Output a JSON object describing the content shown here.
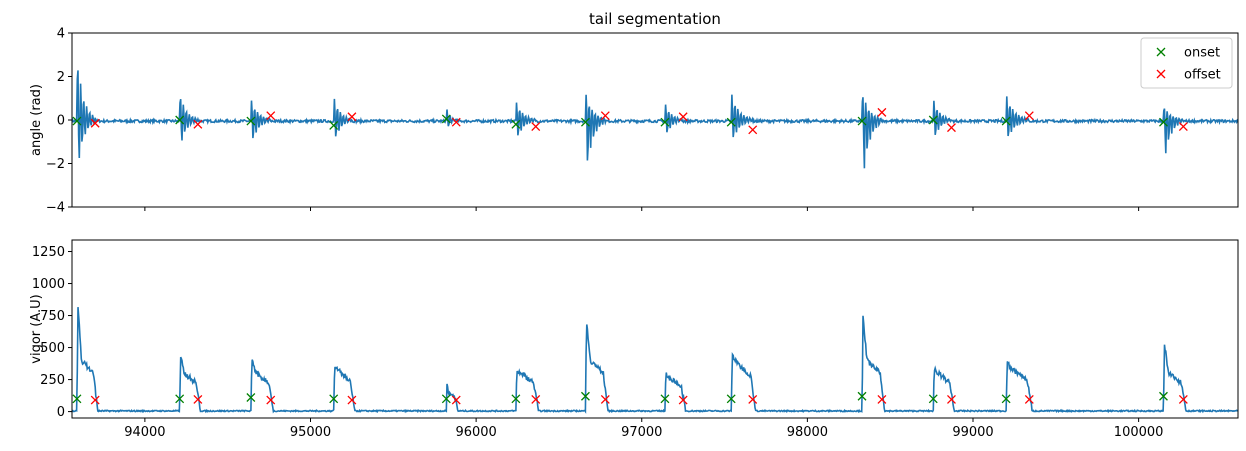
{
  "colors": {
    "trace": "#1f77b4",
    "onset": "#008000",
    "offset": "#ff0000",
    "axis": "#000000",
    "legend_border": "#cccccc"
  },
  "chart_data": [
    {
      "type": "line",
      "title": "tail segmentation",
      "xlabel": "",
      "ylabel": "angle (rad)",
      "xlim": [
        93560,
        100600
      ],
      "ylim": [
        -4,
        4
      ],
      "yticks": [
        -4,
        -2,
        0,
        2,
        4
      ],
      "ytick_labels": [
        "−4",
        "−2",
        "0",
        "2",
        "4"
      ],
      "xticks": [
        94000,
        95000,
        96000,
        97000,
        98000,
        99000,
        100000
      ],
      "xtick_labels_visible": false,
      "grid": false,
      "legend": {
        "placement": "top-right",
        "entries": [
          {
            "name": "onset",
            "marker": "x",
            "color": "#008000"
          },
          {
            "name": "offset",
            "marker": "x",
            "color": "#ff0000"
          }
        ]
      },
      "bouts": [
        {
          "onset": 93590,
          "offset": 93700,
          "peak_pos": 3.1,
          "peak_neg": -2.6
        },
        {
          "onset": 94210,
          "offset": 94320,
          "peak_pos": 1.3,
          "peak_neg": -1.4
        },
        {
          "onset": 94640,
          "offset": 94760,
          "peak_pos": 1.0,
          "peak_neg": -1.3
        },
        {
          "onset": 95140,
          "offset": 95250,
          "peak_pos": 1.1,
          "peak_neg": -1.2
        },
        {
          "onset": 95820,
          "offset": 95880,
          "peak_pos": 0.6,
          "peak_neg": -0.6
        },
        {
          "onset": 96240,
          "offset": 96360,
          "peak_pos": 0.9,
          "peak_neg": -1.1
        },
        {
          "onset": 96660,
          "offset": 96780,
          "peak_pos": 1.3,
          "peak_neg": -2.9
        },
        {
          "onset": 97140,
          "offset": 97250,
          "peak_pos": 0.8,
          "peak_neg": -0.9
        },
        {
          "onset": 97540,
          "offset": 97670,
          "peak_pos": 1.3,
          "peak_neg": -1.2
        },
        {
          "onset": 98330,
          "offset": 98450,
          "peak_pos": 1.4,
          "peak_neg": -3.2
        },
        {
          "onset": 98760,
          "offset": 98870,
          "peak_pos": 1.0,
          "peak_neg": -1.1
        },
        {
          "onset": 99200,
          "offset": 99340,
          "peak_pos": 1.2,
          "peak_neg": -1.1
        },
        {
          "onset": 100150,
          "offset": 100270,
          "peak_pos": 0.7,
          "peak_neg": -2.2
        }
      ],
      "onset_markers": [
        {
          "x": 93590,
          "y": -0.05
        },
        {
          "x": 94210,
          "y": 0.0
        },
        {
          "x": 94640,
          "y": -0.05
        },
        {
          "x": 95140,
          "y": -0.25
        },
        {
          "x": 95820,
          "y": 0.05
        },
        {
          "x": 96240,
          "y": -0.2
        },
        {
          "x": 96660,
          "y": -0.1
        },
        {
          "x": 97140,
          "y": -0.1
        },
        {
          "x": 97540,
          "y": -0.1
        },
        {
          "x": 98330,
          "y": -0.05
        },
        {
          "x": 98760,
          "y": 0.0
        },
        {
          "x": 99200,
          "y": -0.05
        },
        {
          "x": 100150,
          "y": -0.1
        }
      ],
      "offset_markers": [
        {
          "x": 93700,
          "y": -0.15
        },
        {
          "x": 94320,
          "y": -0.2
        },
        {
          "x": 94760,
          "y": 0.2
        },
        {
          "x": 95250,
          "y": 0.15
        },
        {
          "x": 95880,
          "y": -0.1
        },
        {
          "x": 96360,
          "y": -0.3
        },
        {
          "x": 96780,
          "y": 0.2
        },
        {
          "x": 97250,
          "y": 0.15
        },
        {
          "x": 97670,
          "y": -0.45
        },
        {
          "x": 98450,
          "y": 0.35
        },
        {
          "x": 98870,
          "y": -0.35
        },
        {
          "x": 99340,
          "y": 0.2
        },
        {
          "x": 100270,
          "y": -0.3
        }
      ]
    },
    {
      "type": "line",
      "title": "",
      "xlabel": "",
      "ylabel": "vigor (A.U)",
      "xlim": [
        93560,
        100600
      ],
      "ylim": [
        -50,
        1340
      ],
      "yticks": [
        0,
        250,
        500,
        750,
        1000,
        1250
      ],
      "ytick_labels": [
        "0",
        "250",
        "500",
        "750",
        "1000",
        "1250"
      ],
      "xticks": [
        94000,
        95000,
        96000,
        97000,
        98000,
        99000,
        100000
      ],
      "xtick_labels": [
        "94000",
        "95000",
        "96000",
        "97000",
        "98000",
        "99000",
        "100000"
      ],
      "grid": false,
      "bouts": [
        {
          "onset": 93590,
          "offset": 93700,
          "peak": 830,
          "plateau": 400
        },
        {
          "onset": 94210,
          "offset": 94320,
          "peak": 430,
          "plateau": 300
        },
        {
          "onset": 94640,
          "offset": 94760,
          "peak": 410,
          "plateau": 300
        },
        {
          "onset": 95140,
          "offset": 95250,
          "peak": 360,
          "plateau": 320
        },
        {
          "onset": 95820,
          "offset": 95880,
          "peak": 210,
          "plateau": 150
        },
        {
          "onset": 96240,
          "offset": 96360,
          "peak": 320,
          "plateau": 300
        },
        {
          "onset": 96660,
          "offset": 96780,
          "peak": 710,
          "plateau": 400
        },
        {
          "onset": 97140,
          "offset": 97250,
          "peak": 300,
          "plateau": 260
        },
        {
          "onset": 97540,
          "offset": 97670,
          "peak": 450,
          "plateau": 380
        },
        {
          "onset": 98330,
          "offset": 98450,
          "peak": 740,
          "plateau": 400
        },
        {
          "onset": 98760,
          "offset": 98870,
          "peak": 340,
          "plateau": 300
        },
        {
          "onset": 99200,
          "offset": 99340,
          "peak": 380,
          "plateau": 330
        },
        {
          "onset": 100150,
          "offset": 100270,
          "peak": 530,
          "plateau": 300
        }
      ],
      "onset_markers": [
        {
          "x": 93590,
          "y": 100
        },
        {
          "x": 94210,
          "y": 100
        },
        {
          "x": 94640,
          "y": 110
        },
        {
          "x": 95140,
          "y": 100
        },
        {
          "x": 95820,
          "y": 100
        },
        {
          "x": 96240,
          "y": 100
        },
        {
          "x": 96660,
          "y": 120
        },
        {
          "x": 97140,
          "y": 100
        },
        {
          "x": 97540,
          "y": 100
        },
        {
          "x": 98330,
          "y": 120
        },
        {
          "x": 98760,
          "y": 100
        },
        {
          "x": 99200,
          "y": 100
        },
        {
          "x": 100150,
          "y": 120
        }
      ],
      "offset_markers": [
        {
          "x": 93700,
          "y": 90
        },
        {
          "x": 94320,
          "y": 95
        },
        {
          "x": 94760,
          "y": 90
        },
        {
          "x": 95250,
          "y": 90
        },
        {
          "x": 95880,
          "y": 90
        },
        {
          "x": 96360,
          "y": 95
        },
        {
          "x": 96780,
          "y": 95
        },
        {
          "x": 97250,
          "y": 90
        },
        {
          "x": 97670,
          "y": 95
        },
        {
          "x": 98450,
          "y": 95
        },
        {
          "x": 98870,
          "y": 95
        },
        {
          "x": 99340,
          "y": 95
        },
        {
          "x": 100270,
          "y": 95
        }
      ]
    }
  ]
}
